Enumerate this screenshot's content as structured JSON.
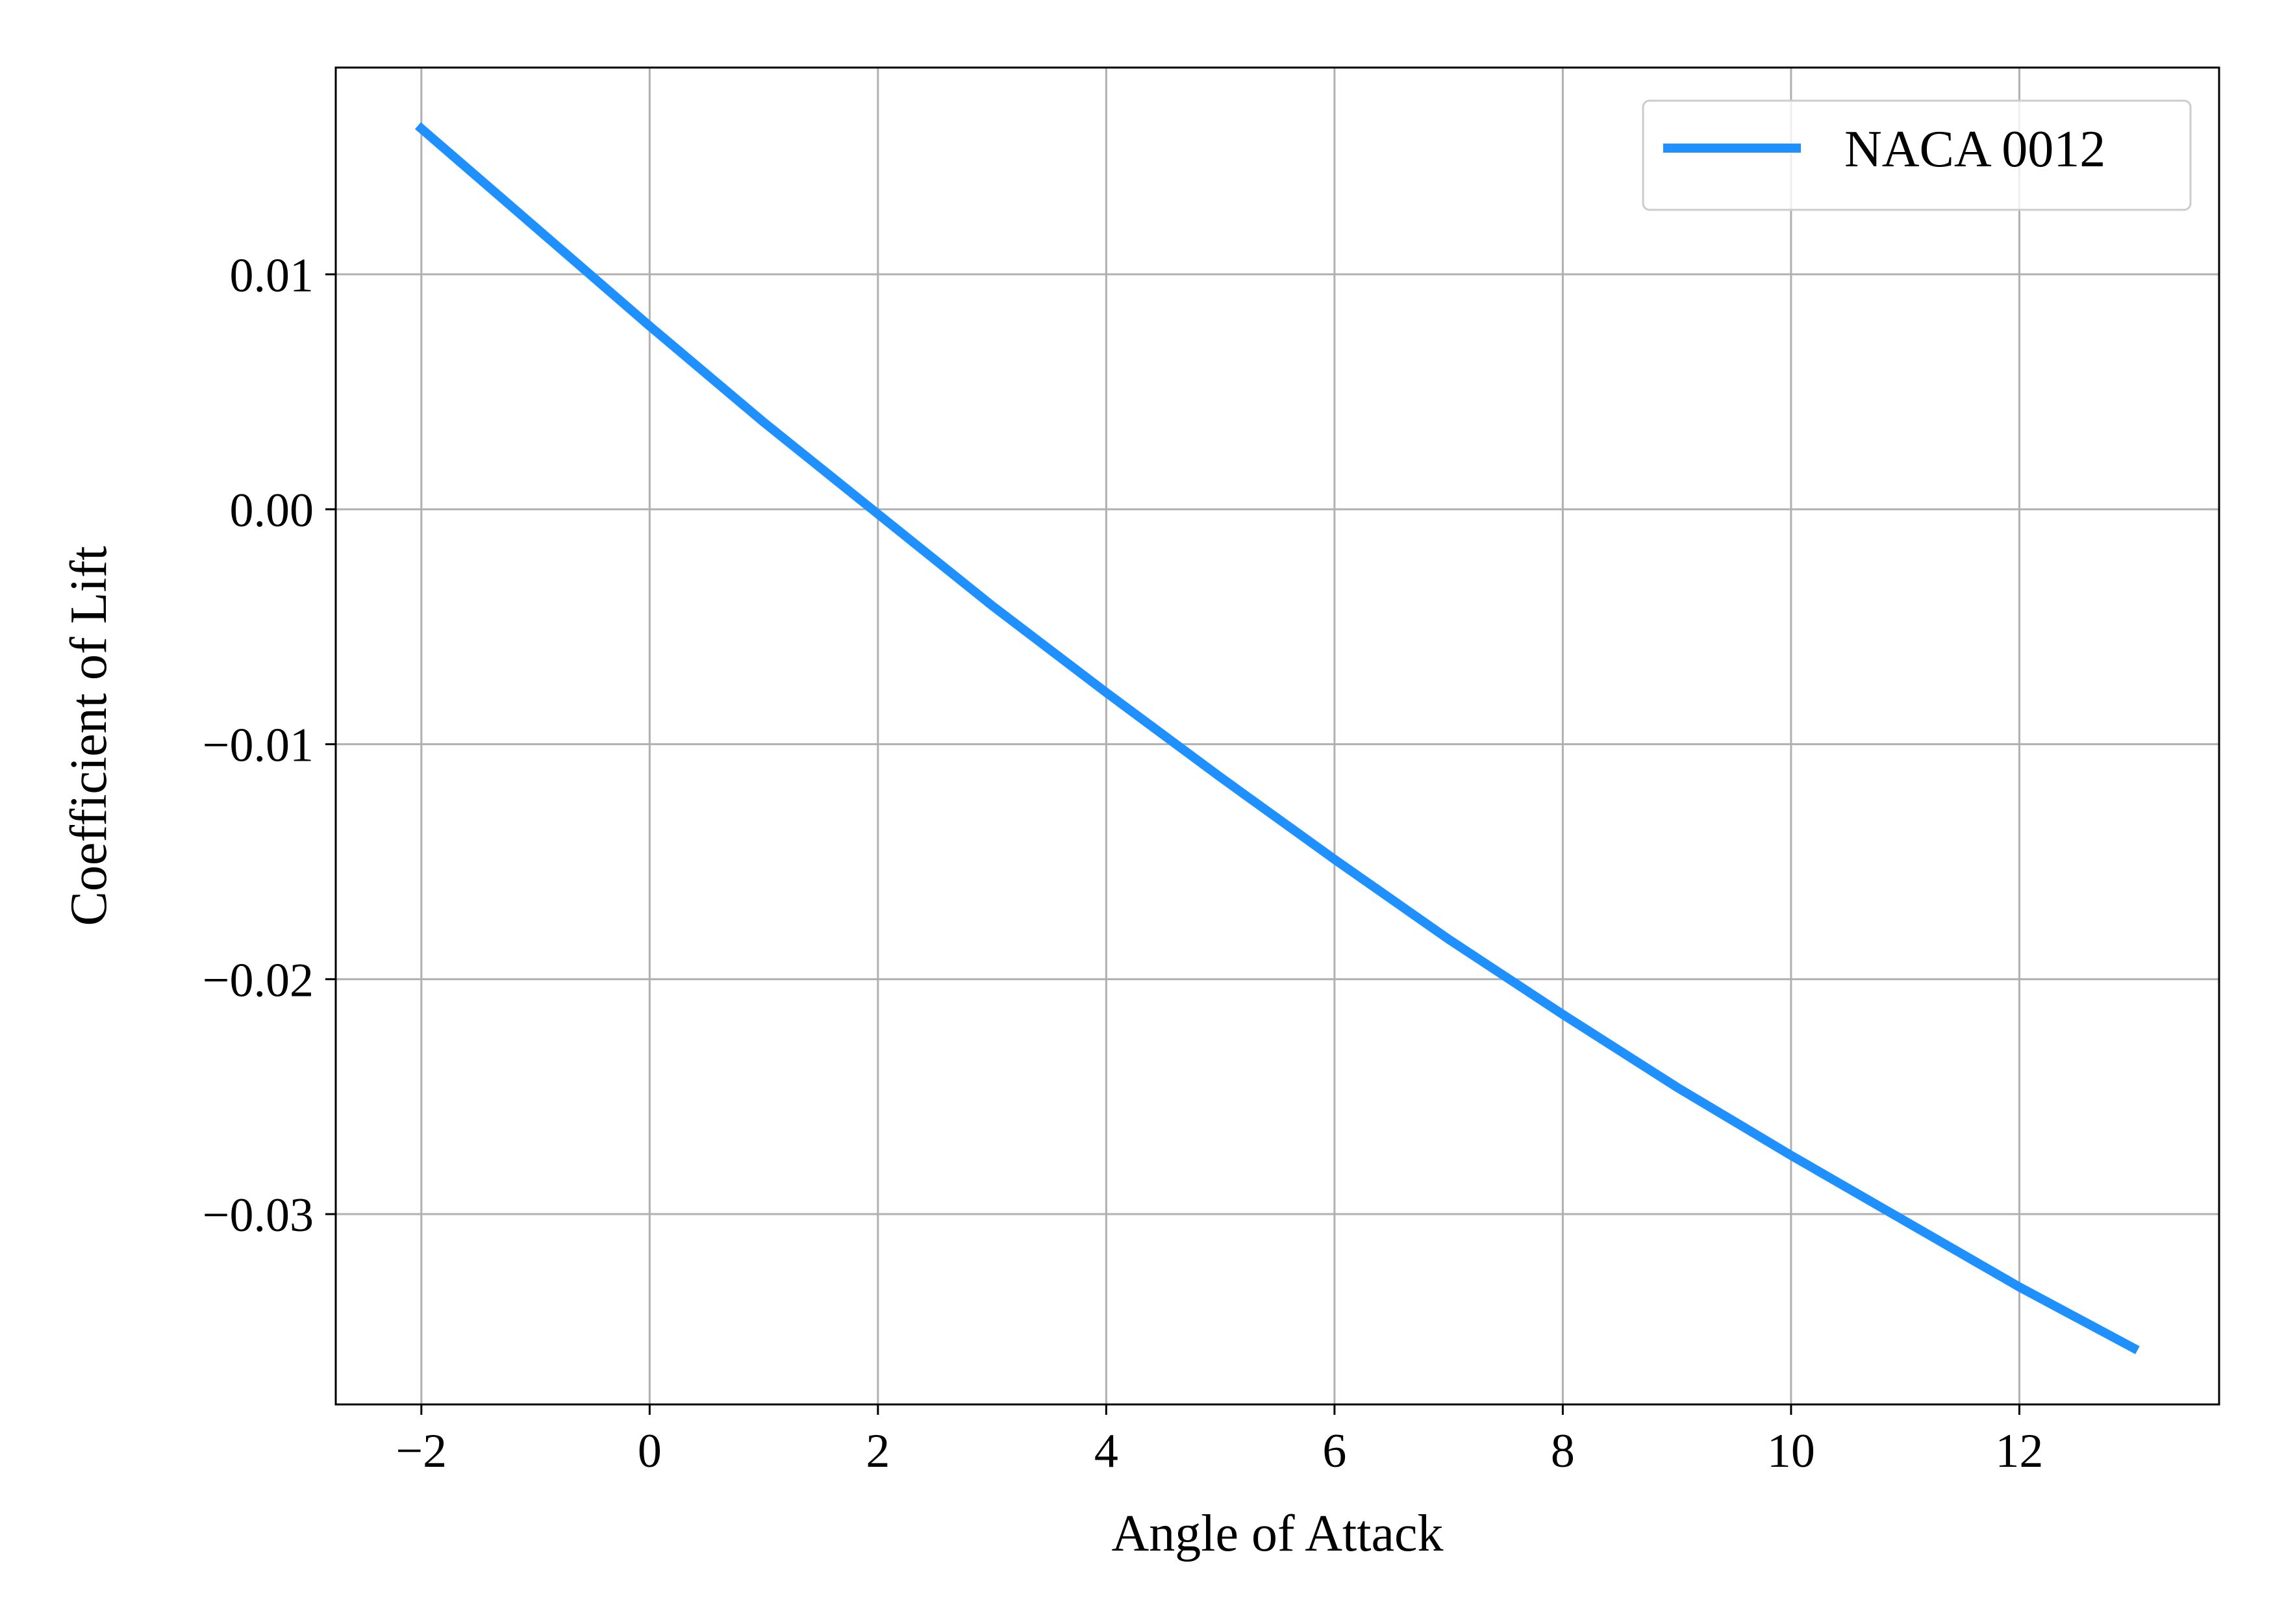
{
  "chart_data": {
    "type": "line",
    "title": "",
    "xlabel": "Angle of Attack",
    "ylabel": "Coefficient of Lift",
    "xlim": [
      -2.75,
      13.75
    ],
    "ylim": [
      -0.0381,
      0.0188
    ],
    "xticks": [
      -2,
      0,
      2,
      4,
      6,
      8,
      10,
      12
    ],
    "xtick_labels": [
      "−2",
      "0",
      "2",
      "4",
      "6",
      "8",
      "10",
      "12"
    ],
    "yticks": [
      -0.03,
      -0.02,
      -0.01,
      0.0,
      0.01
    ],
    "ytick_labels": [
      "−0.03",
      "−0.02",
      "−0.01",
      "0.00",
      "0.01"
    ],
    "grid": true,
    "legend_position": "top-right",
    "series": [
      {
        "name": "NACA 0012",
        "color": "#1e90ff",
        "x": [
          -2,
          -1,
          0,
          1,
          2,
          3,
          4,
          5,
          6,
          7,
          8,
          9,
          10,
          11,
          12,
          13
        ],
        "y": [
          0.0162,
          0.012,
          0.0078,
          0.0037,
          -0.0002,
          -0.0041,
          -0.0078,
          -0.0114,
          -0.0149,
          -0.0183,
          -0.0215,
          -0.0246,
          -0.0275,
          -0.0303,
          -0.0331,
          -0.0357
        ]
      }
    ]
  }
}
